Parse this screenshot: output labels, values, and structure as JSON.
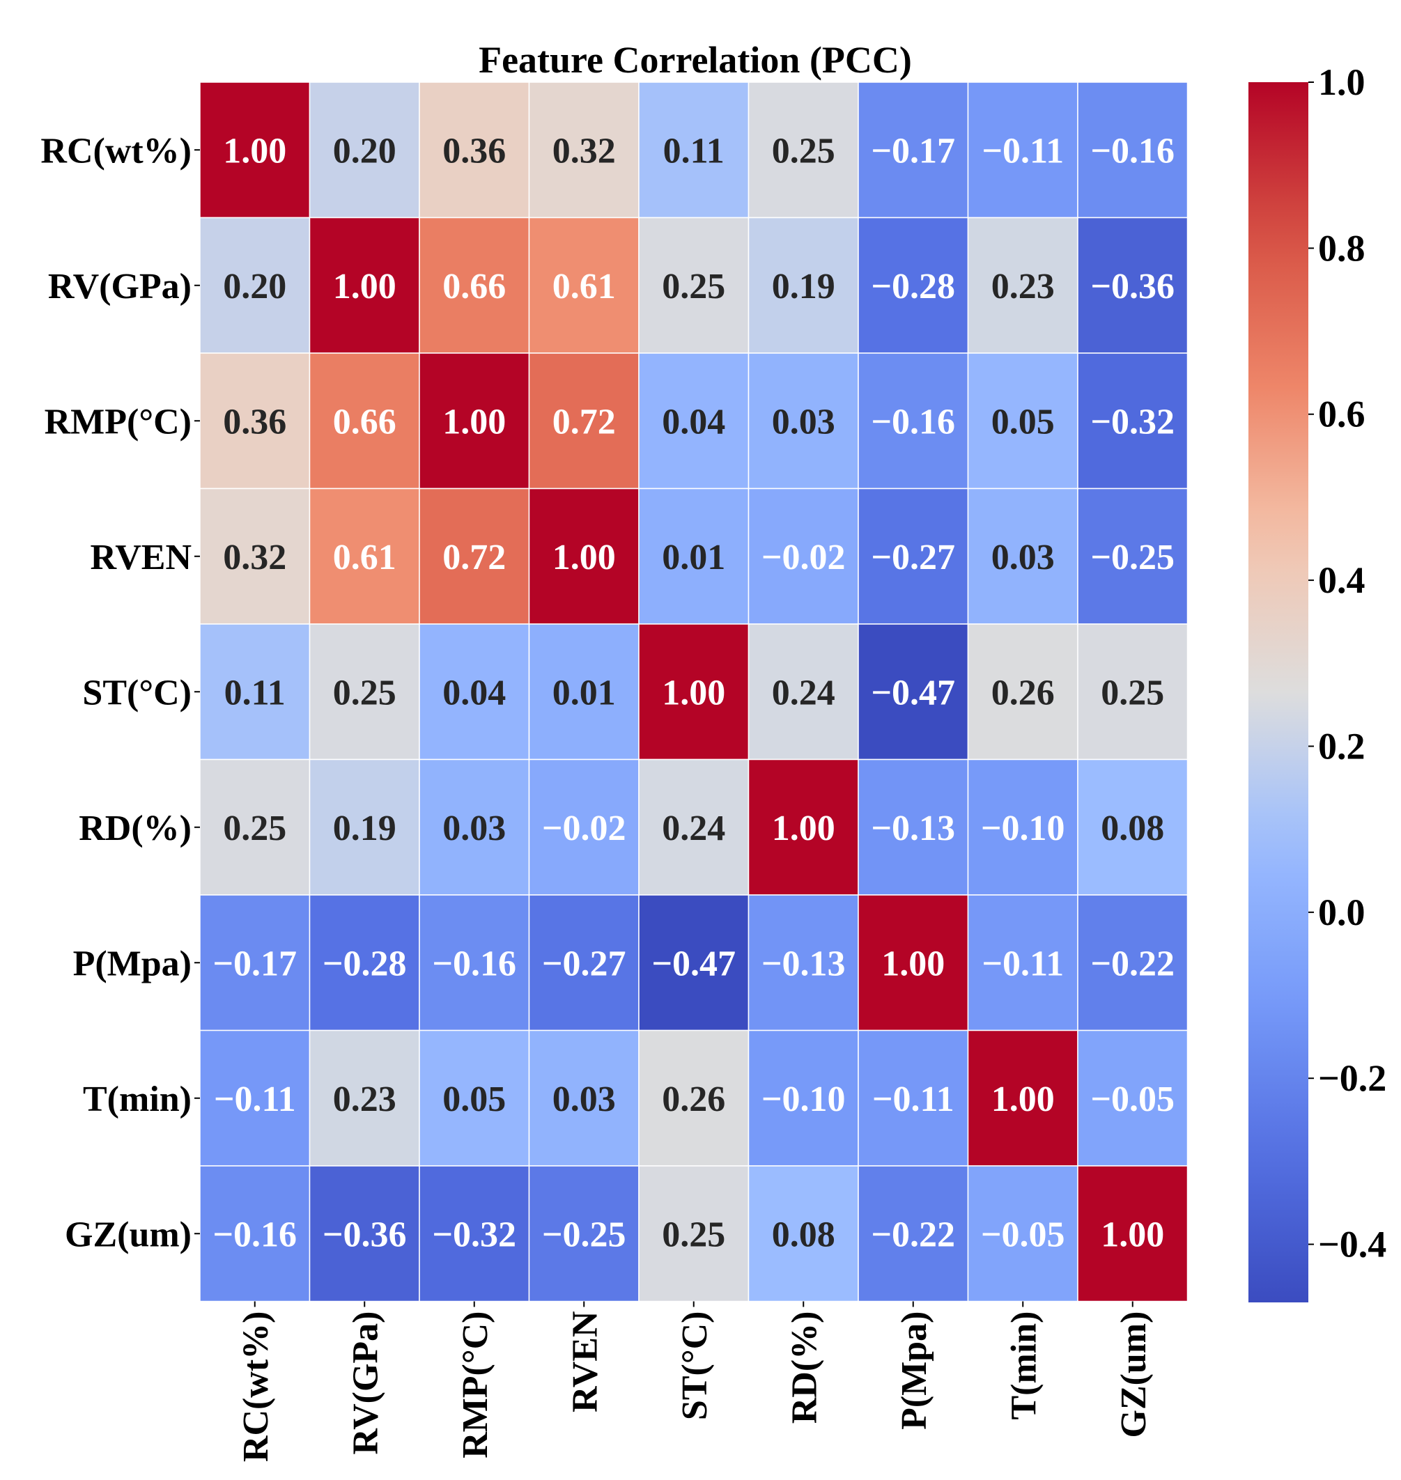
{
  "chart_data": {
    "type": "heatmap",
    "title": "Feature Correlation (PCC)",
    "labels": [
      "RC(wt%)",
      "RV(GPa)",
      "RMP(°C)",
      "RVEN",
      "ST(°C)",
      "RD(%)",
      "P(Mpa)",
      "T(min)",
      "GZ(um)"
    ],
    "values": [
      [
        1.0,
        0.2,
        0.36,
        0.32,
        0.11,
        0.25,
        -0.17,
        -0.11,
        -0.16
      ],
      [
        0.2,
        1.0,
        0.66,
        0.61,
        0.25,
        0.19,
        -0.28,
        0.23,
        -0.36
      ],
      [
        0.36,
        0.66,
        1.0,
        0.72,
        0.04,
        0.03,
        -0.16,
        0.05,
        -0.32
      ],
      [
        0.32,
        0.61,
        0.72,
        1.0,
        0.01,
        -0.02,
        -0.27,
        0.03,
        -0.25
      ],
      [
        0.11,
        0.25,
        0.04,
        0.01,
        1.0,
        0.24,
        -0.47,
        0.26,
        0.25
      ],
      [
        0.25,
        0.19,
        0.03,
        -0.02,
        0.24,
        1.0,
        -0.13,
        -0.1,
        0.08
      ],
      [
        -0.17,
        -0.28,
        -0.16,
        -0.27,
        -0.47,
        -0.13,
        1.0,
        -0.11,
        -0.22
      ],
      [
        -0.11,
        0.23,
        0.05,
        0.03,
        0.26,
        -0.1,
        -0.11,
        1.0,
        -0.05
      ],
      [
        -0.16,
        -0.36,
        -0.32,
        -0.25,
        0.25,
        0.08,
        -0.22,
        -0.05,
        1.0
      ]
    ],
    "colormap": "coolwarm",
    "vmin": -0.47,
    "vmax": 1.0,
    "colorbar_ticks": [
      "1.0",
      "0.8",
      "0.6",
      "0.4",
      "0.2",
      "0.0",
      "−0.2",
      "−0.4"
    ],
    "colorbar_tick_values": [
      1.0,
      0.8,
      0.6,
      0.4,
      0.2,
      0.0,
      -0.2,
      -0.4
    ],
    "annotation_format": "0.00",
    "xlabel_rotation": "vertical"
  }
}
